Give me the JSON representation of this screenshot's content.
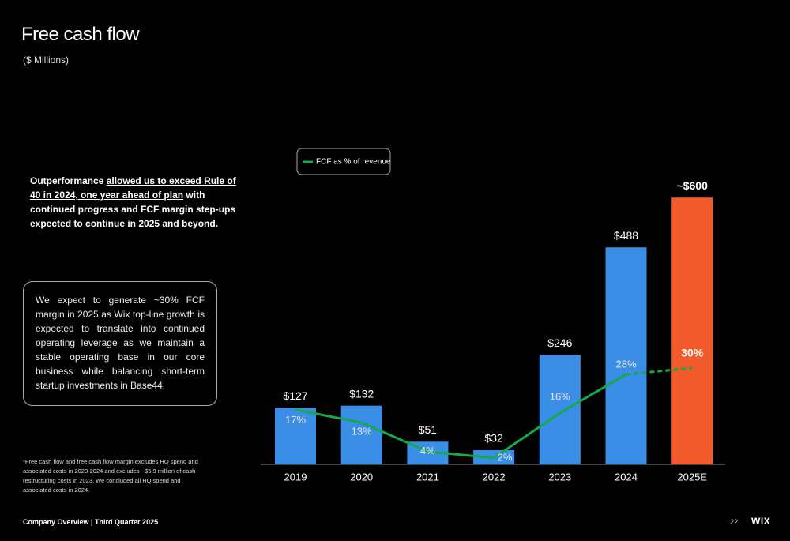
{
  "title": "Free cash flow",
  "subtitle": "($ Millions)",
  "intro": [
    "Outperformance ",
    "allowed us to exceed Rule of 40 in 2024, one year ahead of plan",
    " with continued progress and FCF margin step-ups expected to continue in 2025 and beyond."
  ],
  "callout": "We expect to generate ~30% FCF margin in 2025 as Wix top-line growth is expected to translate into continued operating leverage as we maintain a stable operating base in our core business while balancing short-term startup investments in Base44.",
  "footnote": "*Free cash flow and free cash flow margin excludes HQ spend and associated costs in 2020-2024 and excludes ~$5.9 million of cash restructuring costs in 2023. We concluded all HQ spend and associated costs in 2024.",
  "footer": {
    "left": "Company Overview | Third Quarter 2025",
    "page": "22",
    "logo": "WIX"
  },
  "chart_data": {
    "type": "bar_line",
    "categories": [
      "2019",
      "2020",
      "2021",
      "2022",
      "2023",
      "2024",
      "2025E"
    ],
    "bars": {
      "values": [
        127,
        132,
        51,
        32,
        246,
        488,
        600
      ],
      "value_labels": [
        "$127",
        "$132",
        "$51",
        "$32",
        "$246",
        "$488",
        "~$600"
      ],
      "colors": [
        "#3a8ee6",
        "#3a8ee6",
        "#3a8ee6",
        "#3a8ee6",
        "#3a8ee6",
        "#3a8ee6",
        "#f15a2b"
      ]
    },
    "series": [
      {
        "name": "FCF as % of revenue",
        "color": "#16a84a",
        "values": [
          17,
          13,
          4,
          2,
          16,
          28,
          30
        ],
        "value_labels": [
          "17%",
          "13%",
          "4%",
          "2%",
          "16%",
          "28%",
          "30%"
        ],
        "segment_styles": [
          "solid",
          "solid",
          "solid",
          "solid",
          "solid",
          "dashed"
        ]
      }
    ]
  }
}
